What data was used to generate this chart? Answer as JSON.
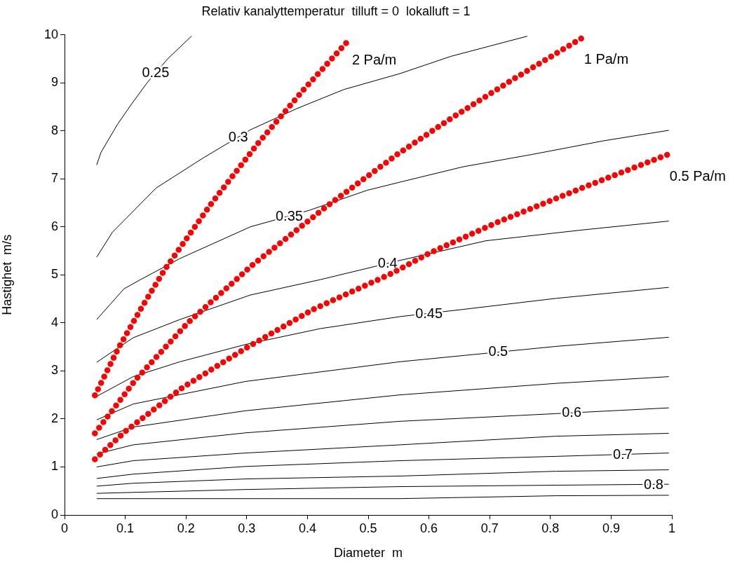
{
  "chart_data": {
    "type": "line",
    "title": "Relativ kanalyttemperatur  tilluft = 0  lokalluft = 1",
    "xlabel": "Diameter  m",
    "ylabel": "Hastighet  m/s",
    "xlim": [
      0,
      1
    ],
    "xticks": [
      0,
      0.1,
      0.2,
      0.3,
      0.4,
      0.5,
      0.6,
      0.7,
      0.8,
      0.9,
      1
    ],
    "ylim": [
      0,
      10
    ],
    "yticks": [
      0,
      1,
      2,
      3,
      4,
      5,
      6,
      7,
      8,
      9,
      10
    ],
    "grid": false,
    "legend": false,
    "marker": "none",
    "line_style": "solid",
    "series": [
      {
        "color": "#000000",
        "x": [
          0.053,
          0.06,
          0.087,
          0.11,
          0.136,
          0.17,
          0.209
        ],
        "values": [
          7.29,
          7.55,
          8.13,
          8.55,
          9.0,
          9.5,
          9.97
        ]
      },
      {
        "color": "#000000",
        "x": [
          0.053,
          0.079,
          0.151,
          0.229,
          0.306,
          0.382,
          0.46,
          0.552,
          0.636,
          0.762
        ],
        "values": [
          5.37,
          5.89,
          6.81,
          7.44,
          8.02,
          8.46,
          8.86,
          9.19,
          9.55,
          9.97
        ]
      },
      {
        "color": "#000000",
        "x": [
          0.053,
          0.098,
          0.125,
          0.19,
          0.306,
          0.402,
          0.498,
          0.552,
          0.656,
          0.771,
          0.887,
          0.995
        ],
        "values": [
          4.07,
          4.71,
          4.9,
          5.34,
          6.0,
          6.34,
          6.76,
          6.93,
          7.25,
          7.51,
          7.79,
          8.01
        ]
      },
      {
        "color": "#000000",
        "x": [
          0.053,
          0.113,
          0.19,
          0.306,
          0.421,
          0.552,
          0.694,
          0.849,
          0.995
        ],
        "values": [
          3.18,
          3.69,
          4.07,
          4.58,
          4.9,
          5.3,
          5.71,
          5.93,
          6.12
        ]
      },
      {
        "color": "#000000",
        "x": [
          0.053,
          0.113,
          0.19,
          0.298,
          0.421,
          0.552,
          0.656,
          0.809,
          0.995
        ],
        "values": [
          2.47,
          2.88,
          3.19,
          3.55,
          3.88,
          4.13,
          4.28,
          4.51,
          4.74
        ]
      },
      {
        "color": "#000000",
        "x": [
          0.053,
          0.113,
          0.298,
          0.552,
          0.809,
          0.995
        ],
        "values": [
          1.98,
          2.31,
          2.78,
          3.19,
          3.51,
          3.7
        ]
      },
      {
        "color": "#000000",
        "x": [
          0.053,
          0.113,
          0.298,
          0.552,
          0.809,
          0.995
        ],
        "values": [
          1.57,
          1.83,
          2.17,
          2.5,
          2.74,
          2.88
        ]
      },
      {
        "color": "#000000",
        "x": [
          0.053,
          0.113,
          0.298,
          0.552,
          0.809,
          0.995
        ],
        "values": [
          1.27,
          1.46,
          1.71,
          1.95,
          2.11,
          2.23
        ]
      },
      {
        "color": "#000000",
        "x": [
          0.053,
          0.113,
          0.298,
          0.552,
          0.809,
          0.995
        ],
        "values": [
          1.0,
          1.13,
          1.29,
          1.46,
          1.64,
          1.7
        ]
      },
      {
        "color": "#000000",
        "x": [
          0.053,
          0.113,
          0.298,
          0.552,
          0.809,
          0.995
        ],
        "values": [
          0.76,
          0.85,
          1.01,
          1.13,
          1.22,
          1.29
        ]
      },
      {
        "color": "#000000",
        "x": [
          0.053,
          0.113,
          0.298,
          0.552,
          0.809,
          0.995
        ],
        "values": [
          0.6,
          0.66,
          0.75,
          0.81,
          0.91,
          0.94
        ]
      },
      {
        "color": "#000000",
        "x": [
          0.053,
          0.113,
          0.298,
          0.552,
          0.809,
          0.995
        ],
        "values": [
          0.45,
          0.47,
          0.53,
          0.59,
          0.62,
          0.64
        ]
      },
      {
        "color": "#000000",
        "x": [
          0.053,
          0.113,
          0.298,
          0.552,
          0.809,
          0.995
        ],
        "values": [
          0.34,
          0.34,
          0.34,
          0.34,
          0.4,
          0.41
        ]
      },
      {
        "name": "2 Pa/m",
        "color": "#ff0000",
        "line_style": "dotted",
        "x": [
          0.05,
          0.089,
          0.127,
          0.165,
          0.242,
          0.318,
          0.394,
          0.471
        ],
        "values": [
          2.49,
          3.48,
          4.32,
          5.11,
          6.49,
          7.73,
          8.86,
          9.93
        ]
      },
      {
        "name": "1 Pa/m",
        "color": "#ff0000",
        "line_style": "dotted",
        "x": [
          0.05,
          0.118,
          0.203,
          0.309,
          0.433,
          0.548,
          0.633,
          0.737,
          0.853
        ],
        "values": [
          1.7,
          2.83,
          4.0,
          5.2,
          6.44,
          7.51,
          8.23,
          9.06,
          9.94
        ]
      },
      {
        "name": "0.5 Pa/m",
        "color": "#ff0000",
        "line_style": "dotted",
        "x": [
          0.05,
          0.099,
          0.194,
          0.298,
          0.411,
          0.537,
          0.602,
          0.717,
          0.852,
          0.994
        ],
        "values": [
          1.16,
          1.73,
          2.65,
          3.47,
          4.29,
          5.02,
          5.46,
          6.12,
          6.81,
          7.51
        ]
      }
    ],
    "annotations": [
      {
        "text": "0.25",
        "x": 0.15,
        "y": 9.21
      },
      {
        "text": "0.3",
        "x": 0.286,
        "y": 7.87
      },
      {
        "text": "0.35",
        "x": 0.37,
        "y": 6.23
      },
      {
        "text": "0.4",
        "x": 0.532,
        "y": 5.24
      },
      {
        "text": "0.45",
        "x": 0.6,
        "y": 4.2
      },
      {
        "text": "0.5",
        "x": 0.714,
        "y": 3.4
      },
      {
        "text": "0.6",
        "x": 0.835,
        "y": 2.14
      },
      {
        "text": "0.7",
        "x": 0.919,
        "y": 1.26
      },
      {
        "text": "0.8",
        "x": 0.97,
        "y": 0.64
      }
    ]
  }
}
